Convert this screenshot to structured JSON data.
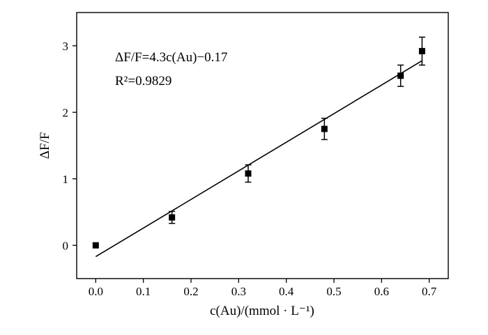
{
  "chart_data": {
    "type": "scatter",
    "xlabel": "c(Au)/(mmol · L⁻¹)",
    "ylabel": "ΔF/F",
    "xlim": [
      -0.04,
      0.74
    ],
    "ylim": [
      -0.5,
      3.5
    ],
    "x_ticks": [
      0.0,
      0.1,
      0.2,
      0.3,
      0.4,
      0.5,
      0.6,
      0.7
    ],
    "x_tick_labels": [
      "0.0",
      "0.1",
      "0.2",
      "0.3",
      "0.4",
      "0.5",
      "0.6",
      "0.7"
    ],
    "y_ticks": [
      0,
      1,
      2,
      3
    ],
    "y_tick_labels": [
      "0",
      "1",
      "2",
      "3"
    ],
    "grid": false,
    "marker_color": "#000000",
    "points": [
      {
        "x": 0.0,
        "y": 0.0,
        "err": 0.0
      },
      {
        "x": 0.16,
        "y": 0.42,
        "err": 0.09
      },
      {
        "x": 0.32,
        "y": 1.08,
        "err": 0.13
      },
      {
        "x": 0.48,
        "y": 1.75,
        "err": 0.16
      },
      {
        "x": 0.64,
        "y": 2.55,
        "err": 0.16
      },
      {
        "x": 0.685,
        "y": 2.92,
        "err": 0.21
      }
    ],
    "fit": {
      "slope": 4.3,
      "intercept": -0.17,
      "x_start": 0.0,
      "x_end": 0.685
    },
    "annotations": {
      "equation": "ΔF/F=4.3c(Au)−0.17",
      "r_squared": "R²=0.9829"
    }
  }
}
